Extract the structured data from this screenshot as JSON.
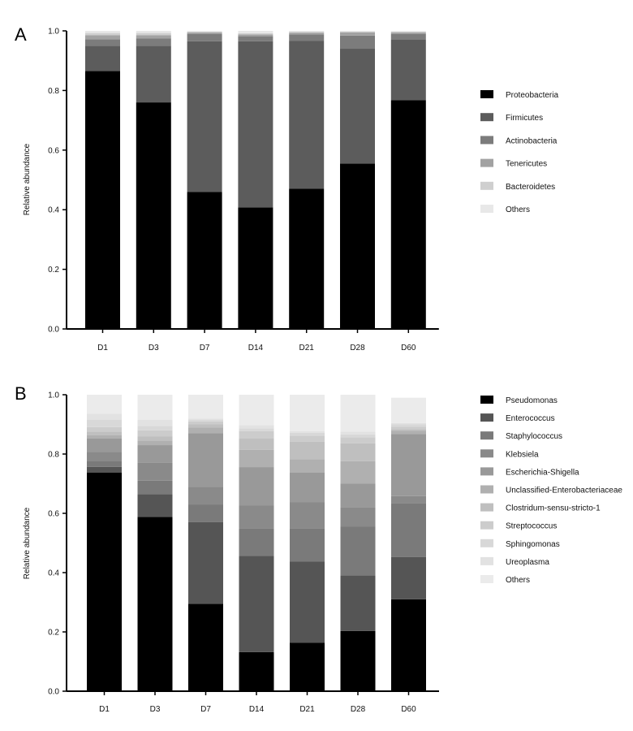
{
  "chart_data": [
    {
      "panel": "A",
      "type": "bar",
      "stacked": true,
      "ylabel": "Relative abundance",
      "xlabel": "",
      "ylim": [
        0,
        1.0
      ],
      "yticks": [
        "0.0",
        "0.2",
        "0.4",
        "0.6",
        "0.8",
        "1.0"
      ],
      "categories": [
        "D1",
        "D3",
        "D7",
        "D14",
        "D21",
        "D28",
        "D60"
      ],
      "series": [
        {
          "name": "Proteobacteria",
          "color": "#000000",
          "values": [
            0.865,
            0.76,
            0.46,
            0.408,
            0.47,
            0.555,
            0.767
          ]
        },
        {
          "name": "Firmicutes",
          "color": "#5c5c5c",
          "values": [
            0.085,
            0.19,
            0.505,
            0.557,
            0.497,
            0.385,
            0.203
          ]
        },
        {
          "name": "Actinobacteria",
          "color": "#7c7c7c",
          "values": [
            0.022,
            0.025,
            0.025,
            0.017,
            0.021,
            0.044,
            0.02
          ]
        },
        {
          "name": "Tenericutes",
          "color": "#a2a2a2",
          "values": [
            0.013,
            0.01,
            0.005,
            0.006,
            0.006,
            0.011,
            0.005
          ]
        },
        {
          "name": "Bacteroidetes",
          "color": "#cfcfcf",
          "values": [
            0.008,
            0.008,
            0.002,
            0.004,
            0.003,
            0.003,
            0.002
          ]
        },
        {
          "name": "Others",
          "color": "#e8e8e8",
          "values": [
            0.007,
            0.007,
            0.003,
            0.008,
            0.003,
            0.002,
            0.003
          ]
        }
      ]
    },
    {
      "panel": "B",
      "type": "bar",
      "stacked": true,
      "ylabel": "Relative abundance",
      "xlabel": "",
      "ylim": [
        0,
        1.0
      ],
      "yticks": [
        "0.0",
        "0.2",
        "0.4",
        "0.6",
        "0.8",
        "1.0"
      ],
      "categories": [
        "D1",
        "D3",
        "D7",
        "D14",
        "D21",
        "D28",
        "D60"
      ],
      "series": [
        {
          "name": "Pseudomonas",
          "color": "#000000",
          "values": [
            0.737,
            0.588,
            0.295,
            0.132,
            0.163,
            0.203,
            0.31
          ]
        },
        {
          "name": "Enterococcus",
          "color": "#555555",
          "values": [
            0.02,
            0.077,
            0.275,
            0.325,
            0.275,
            0.188,
            0.143
          ]
        },
        {
          "name": "Staphylococcus",
          "color": "#7a7a7a",
          "values": [
            0.02,
            0.045,
            0.06,
            0.092,
            0.112,
            0.165,
            0.18
          ]
        },
        {
          "name": "Klebsiela",
          "color": "#8a8a8a",
          "values": [
            0.03,
            0.06,
            0.06,
            0.077,
            0.087,
            0.065,
            0.025
          ]
        },
        {
          "name": "Escherichia-Shigella",
          "color": "#999999",
          "values": [
            0.045,
            0.06,
            0.18,
            0.13,
            0.1,
            0.08,
            0.21
          ]
        },
        {
          "name": "Unclassified-Enterobacteriaceae",
          "color": "#b0b0b0",
          "values": [
            0.012,
            0.015,
            0.02,
            0.058,
            0.045,
            0.075,
            0.01
          ]
        },
        {
          "name": "Clostridum-sensu-stricto-1",
          "color": "#bfbfbf",
          "values": [
            0.012,
            0.015,
            0.01,
            0.038,
            0.06,
            0.06,
            0.006
          ]
        },
        {
          "name": "Streptococcus",
          "color": "#cccccc",
          "values": [
            0.015,
            0.02,
            0.01,
            0.025,
            0.02,
            0.02,
            0.008
          ]
        },
        {
          "name": "Sphingomonas",
          "color": "#d8d8d8",
          "values": [
            0.025,
            0.015,
            0.005,
            0.01,
            0.01,
            0.01,
            0.008
          ]
        },
        {
          "name": "Ureoplasma",
          "color": "#e2e2e2",
          "values": [
            0.02,
            0.02,
            0.005,
            0.01,
            0.005,
            0.01,
            0.005
          ]
        },
        {
          "name": "Others",
          "color": "#ebebeb",
          "values": [
            0.064,
            0.085,
            0.08,
            0.103,
            0.123,
            0.124,
            0.085
          ]
        }
      ]
    }
  ]
}
